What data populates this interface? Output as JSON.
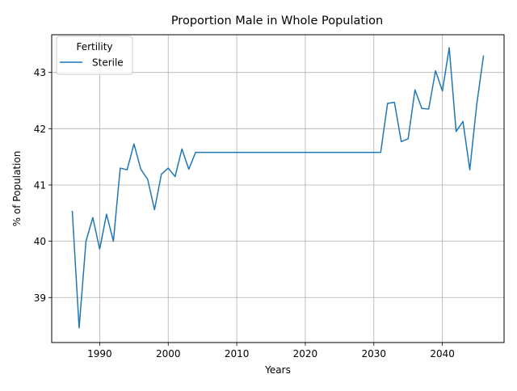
{
  "chart_data": {
    "type": "line",
    "title": "Proportion Male in Whole Population",
    "xlabel": "Years",
    "ylabel": "% of Population",
    "xlim": [
      1983,
      2049
    ],
    "ylim": [
      38.2,
      43.67
    ],
    "x_ticks": [
      1990,
      2000,
      2010,
      2020,
      2030,
      2040
    ],
    "y_ticks": [
      39,
      40,
      41,
      42,
      43
    ],
    "grid": true,
    "legend": {
      "title": "Fertility",
      "placement": "top-left"
    },
    "series": [
      {
        "name": "Sterile",
        "color": "#1f77b4",
        "x": [
          1986,
          1987,
          1988,
          1989,
          1990,
          1991,
          1992,
          1993,
          1994,
          1995,
          1996,
          1997,
          1998,
          1999,
          2000,
          2001,
          2002,
          2003,
          2004,
          2031,
          2032,
          2033,
          2034,
          2035,
          2036,
          2037,
          2038,
          2039,
          2040,
          2041,
          2042,
          2043,
          2044,
          2045,
          2046
        ],
        "y": [
          40.54,
          38.46,
          40.0,
          40.42,
          39.86,
          40.48,
          40.0,
          41.3,
          41.27,
          41.73,
          41.28,
          41.1,
          40.56,
          41.19,
          41.3,
          41.15,
          41.64,
          41.28,
          41.58,
          41.58,
          42.45,
          42.47,
          41.77,
          41.82,
          42.69,
          42.36,
          42.35,
          43.03,
          42.67,
          43.44,
          41.95,
          42.13,
          41.27,
          42.42,
          43.3
        ]
      }
    ]
  }
}
